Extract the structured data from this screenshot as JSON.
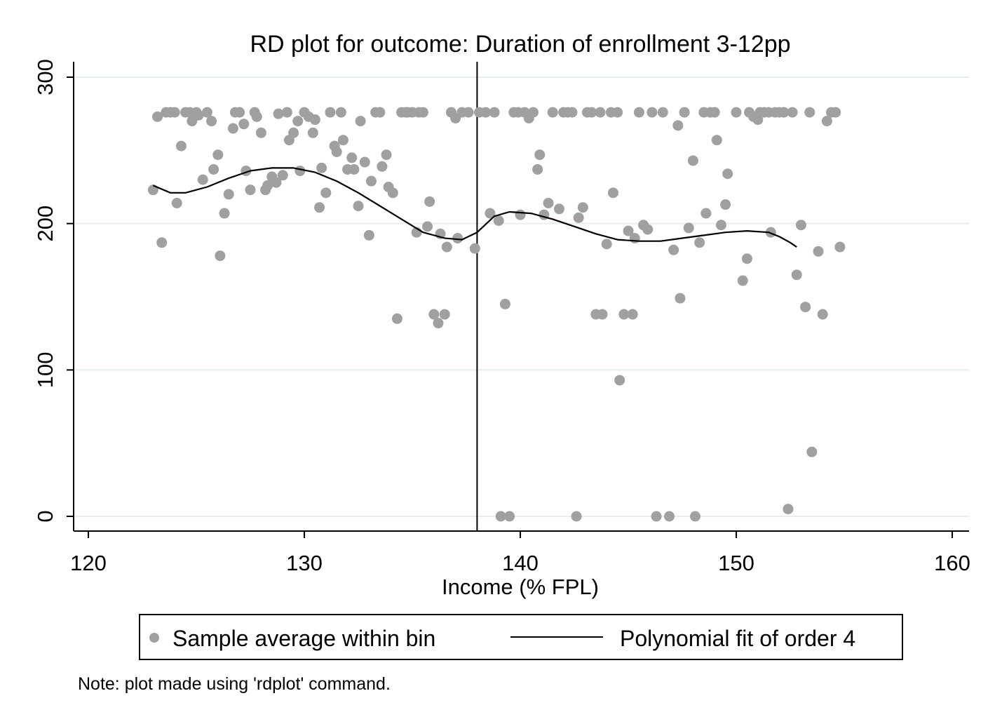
{
  "chart_data": {
    "type": "scatter",
    "title": "RD plot for outcome: Duration of enrollment 3-12pp",
    "xlabel": "Income (% FPL)",
    "ylabel": "",
    "xlim": [
      120,
      160
    ],
    "ylim": [
      0,
      300
    ],
    "xticks": [
      "120",
      "130",
      "140",
      "150",
      "160"
    ],
    "yticks": [
      "0",
      "100",
      "200",
      "300"
    ],
    "cutoff": 138,
    "grid": "horizontal",
    "legend_position": "bottom",
    "note": "Note: plot made using 'rdplot' command.",
    "colors": {
      "points": "#a0a0a0",
      "fit": "#000000",
      "grid": "#e6eef0",
      "cutoff": "#000000"
    },
    "series": [
      {
        "name": "Sample average within bin",
        "type": "scatter",
        "points": [
          [
            123.0,
            223
          ],
          [
            123.2,
            273
          ],
          [
            123.4,
            187
          ],
          [
            123.6,
            276
          ],
          [
            123.8,
            276
          ],
          [
            124.0,
            276
          ],
          [
            124.1,
            214
          ],
          [
            124.3,
            253
          ],
          [
            124.5,
            276
          ],
          [
            124.7,
            276
          ],
          [
            124.8,
            270
          ],
          [
            125.0,
            276
          ],
          [
            125.1,
            274
          ],
          [
            125.3,
            230
          ],
          [
            125.5,
            276
          ],
          [
            125.7,
            270
          ],
          [
            125.8,
            237
          ],
          [
            126.0,
            247
          ],
          [
            126.1,
            178
          ],
          [
            126.3,
            207
          ],
          [
            126.5,
            220
          ],
          [
            126.7,
            265
          ],
          [
            126.8,
            276
          ],
          [
            127.0,
            276
          ],
          [
            127.2,
            268
          ],
          [
            127.3,
            236
          ],
          [
            127.5,
            223
          ],
          [
            127.7,
            276
          ],
          [
            127.8,
            273
          ],
          [
            128.0,
            262
          ],
          [
            128.2,
            223
          ],
          [
            128.3,
            226
          ],
          [
            128.5,
            232
          ],
          [
            128.7,
            228
          ],
          [
            128.8,
            275
          ],
          [
            129.0,
            233
          ],
          [
            129.2,
            276
          ],
          [
            129.3,
            257
          ],
          [
            129.5,
            262
          ],
          [
            129.7,
            270
          ],
          [
            129.8,
            236
          ],
          [
            130.0,
            276
          ],
          [
            130.2,
            273
          ],
          [
            130.4,
            262
          ],
          [
            130.5,
            271
          ],
          [
            130.7,
            211
          ],
          [
            130.8,
            238
          ],
          [
            131.0,
            221
          ],
          [
            131.2,
            276
          ],
          [
            131.4,
            253
          ],
          [
            131.5,
            249
          ],
          [
            131.7,
            276
          ],
          [
            131.8,
            257
          ],
          [
            132.0,
            237
          ],
          [
            132.2,
            245
          ],
          [
            132.3,
            237
          ],
          [
            132.5,
            212
          ],
          [
            132.6,
            270
          ],
          [
            132.8,
            242
          ],
          [
            133.0,
            192
          ],
          [
            133.1,
            229
          ],
          [
            133.3,
            276
          ],
          [
            133.5,
            276
          ],
          [
            133.6,
            239
          ],
          [
            133.8,
            247
          ],
          [
            133.9,
            225
          ],
          [
            134.1,
            221
          ],
          [
            134.3,
            135
          ],
          [
            134.5,
            276
          ],
          [
            134.7,
            276
          ],
          [
            134.8,
            276
          ],
          [
            135.0,
            276
          ],
          [
            135.2,
            194
          ],
          [
            135.3,
            276
          ],
          [
            135.5,
            276
          ],
          [
            135.7,
            198
          ],
          [
            135.8,
            215
          ],
          [
            136.0,
            138
          ],
          [
            136.2,
            132
          ],
          [
            136.3,
            193
          ],
          [
            136.5,
            138
          ],
          [
            136.6,
            184
          ],
          [
            136.8,
            276
          ],
          [
            137.0,
            272
          ],
          [
            137.1,
            190
          ],
          [
            137.3,
            276
          ],
          [
            137.6,
            276
          ],
          [
            137.9,
            183
          ],
          [
            138.1,
            276
          ],
          [
            138.4,
            276
          ],
          [
            138.6,
            207
          ],
          [
            138.8,
            276
          ],
          [
            139.0,
            202
          ],
          [
            139.1,
            0
          ],
          [
            139.3,
            145
          ],
          [
            139.5,
            0
          ],
          [
            139.7,
            276
          ],
          [
            139.9,
            276
          ],
          [
            140.0,
            206
          ],
          [
            140.2,
            276
          ],
          [
            140.4,
            272
          ],
          [
            140.6,
            276
          ],
          [
            140.8,
            237
          ],
          [
            140.9,
            247
          ],
          [
            141.1,
            206
          ],
          [
            141.3,
            214
          ],
          [
            141.5,
            276
          ],
          [
            141.8,
            210
          ],
          [
            142.0,
            276
          ],
          [
            142.2,
            276
          ],
          [
            142.4,
            276
          ],
          [
            142.6,
            0
          ],
          [
            142.7,
            204
          ],
          [
            142.9,
            211
          ],
          [
            143.1,
            276
          ],
          [
            143.3,
            276
          ],
          [
            143.5,
            138
          ],
          [
            143.7,
            276
          ],
          [
            143.8,
            138
          ],
          [
            144.0,
            186
          ],
          [
            144.2,
            276
          ],
          [
            144.3,
            221
          ],
          [
            144.5,
            276
          ],
          [
            144.6,
            93
          ],
          [
            144.8,
            138
          ],
          [
            145.0,
            195
          ],
          [
            145.2,
            138
          ],
          [
            145.3,
            190
          ],
          [
            145.5,
            276
          ],
          [
            145.7,
            199
          ],
          [
            145.9,
            196
          ],
          [
            146.1,
            276
          ],
          [
            146.3,
            0
          ],
          [
            146.6,
            276
          ],
          [
            146.9,
            0
          ],
          [
            147.1,
            182
          ],
          [
            147.3,
            267
          ],
          [
            147.4,
            149
          ],
          [
            147.6,
            276
          ],
          [
            147.8,
            197
          ],
          [
            148.0,
            243
          ],
          [
            148.1,
            0
          ],
          [
            148.3,
            187
          ],
          [
            148.5,
            276
          ],
          [
            148.6,
            207
          ],
          [
            148.8,
            276
          ],
          [
            149.0,
            276
          ],
          [
            149.1,
            257
          ],
          [
            149.3,
            199
          ],
          [
            149.5,
            213
          ],
          [
            149.6,
            234
          ],
          [
            150.0,
            276
          ],
          [
            150.3,
            161
          ],
          [
            150.5,
            176
          ],
          [
            150.6,
            276
          ],
          [
            150.8,
            273
          ],
          [
            151.0,
            271
          ],
          [
            151.1,
            276
          ],
          [
            151.3,
            276
          ],
          [
            151.5,
            276
          ],
          [
            151.6,
            194
          ],
          [
            151.8,
            276
          ],
          [
            152.0,
            276
          ],
          [
            152.2,
            276
          ],
          [
            152.4,
            5
          ],
          [
            152.6,
            276
          ],
          [
            152.8,
            165
          ],
          [
            153.0,
            199
          ],
          [
            153.2,
            143
          ],
          [
            153.4,
            276
          ],
          [
            153.5,
            44
          ],
          [
            153.8,
            181
          ],
          [
            154.0,
            138
          ],
          [
            154.2,
            270
          ],
          [
            154.4,
            276
          ],
          [
            154.6,
            276
          ],
          [
            154.8,
            184
          ]
        ]
      },
      {
        "name": "Polynomial fit of order 4",
        "type": "line",
        "points": [
          [
            123.0,
            226
          ],
          [
            123.8,
            221
          ],
          [
            124.5,
            221
          ],
          [
            125.5,
            225
          ],
          [
            126.5,
            231
          ],
          [
            127.5,
            236
          ],
          [
            128.5,
            238
          ],
          [
            129.5,
            238
          ],
          [
            130.5,
            235
          ],
          [
            131.5,
            229
          ],
          [
            132.5,
            221
          ],
          [
            133.5,
            212
          ],
          [
            134.5,
            203
          ],
          [
            135.5,
            194
          ],
          [
            136.5,
            190
          ],
          [
            137.3,
            189
          ],
          [
            138.0,
            194
          ],
          [
            138.8,
            205
          ],
          [
            139.5,
            208
          ],
          [
            140.5,
            207
          ],
          [
            141.5,
            203
          ],
          [
            142.5,
            198
          ],
          [
            143.5,
            193
          ],
          [
            144.5,
            189
          ],
          [
            145.5,
            188
          ],
          [
            146.5,
            188
          ],
          [
            147.5,
            190
          ],
          [
            148.5,
            192
          ],
          [
            149.5,
            194
          ],
          [
            150.5,
            195
          ],
          [
            151.5,
            194
          ],
          [
            152.0,
            191
          ],
          [
            152.5,
            187
          ],
          [
            152.8,
            184
          ]
        ]
      }
    ]
  },
  "legend": {
    "scatter_label": "Sample average within bin",
    "line_label": "Polynomial fit of order 4"
  }
}
